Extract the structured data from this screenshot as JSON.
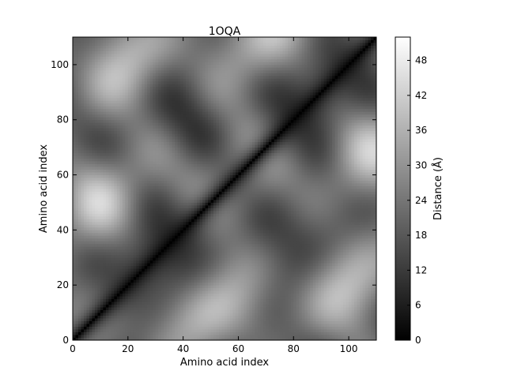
{
  "chart_data": {
    "type": "heatmap",
    "title": "1OQA",
    "xlabel": "Amino acid index",
    "ylabel": "Amino acid index",
    "xlim": [
      0,
      110
    ],
    "ylim": [
      0,
      110
    ],
    "x_ticks": [
      0,
      20,
      40,
      60,
      80,
      100
    ],
    "y_ticks": [
      0,
      20,
      40,
      60,
      80,
      100
    ],
    "colorbar": {
      "label": "Distance (Å)",
      "range": [
        0,
        52
      ],
      "ticks": [
        0,
        6,
        12,
        18,
        24,
        30,
        36,
        42,
        48
      ],
      "colormap": "gray"
    },
    "n_residues": 110,
    "grid": false,
    "colors": {
      "low": "#000000",
      "high": "#ffffff"
    }
  }
}
